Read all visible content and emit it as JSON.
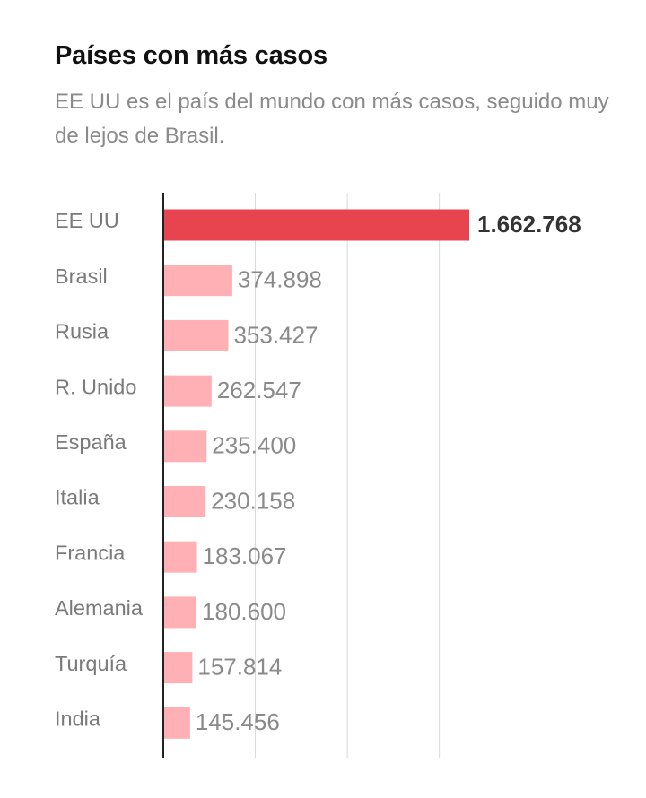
{
  "header": {
    "title": "Países con más casos",
    "subtitle": "EE UU es el país del mundo con más casos, seguido muy de lejos de Brasil."
  },
  "colors": {
    "highlight_bar": "#e8444f",
    "bar": "#ffb0b4",
    "gridline": "#d9d9d9",
    "axis": "#222222"
  },
  "chart_data": {
    "type": "bar",
    "orientation": "horizontal",
    "title": "Países con más casos",
    "subtitle": "EE UU es el país del mundo con más casos, seguido muy de lejos de Brasil.",
    "categories": [
      "EE UU",
      "Brasil",
      "Rusia",
      "R. Unido",
      "España",
      "Italia",
      "Francia",
      "Alemania",
      "Turquía",
      "India"
    ],
    "values": [
      1662768,
      374898,
      353427,
      262547,
      235400,
      230158,
      183067,
      180600,
      157814,
      145456
    ],
    "value_labels": [
      "1.662.768",
      "374.898",
      "353.427",
      "262.547",
      "235.400",
      "230.158",
      "183.067",
      "180.600",
      "157.814",
      "145.456"
    ],
    "highlight": "EE UU",
    "xlim": [
      0,
      1700000
    ],
    "gridlines": [
      0,
      500000,
      1000000,
      1500000
    ],
    "grid": true,
    "legend": "none",
    "xlabel": "",
    "ylabel": ""
  }
}
